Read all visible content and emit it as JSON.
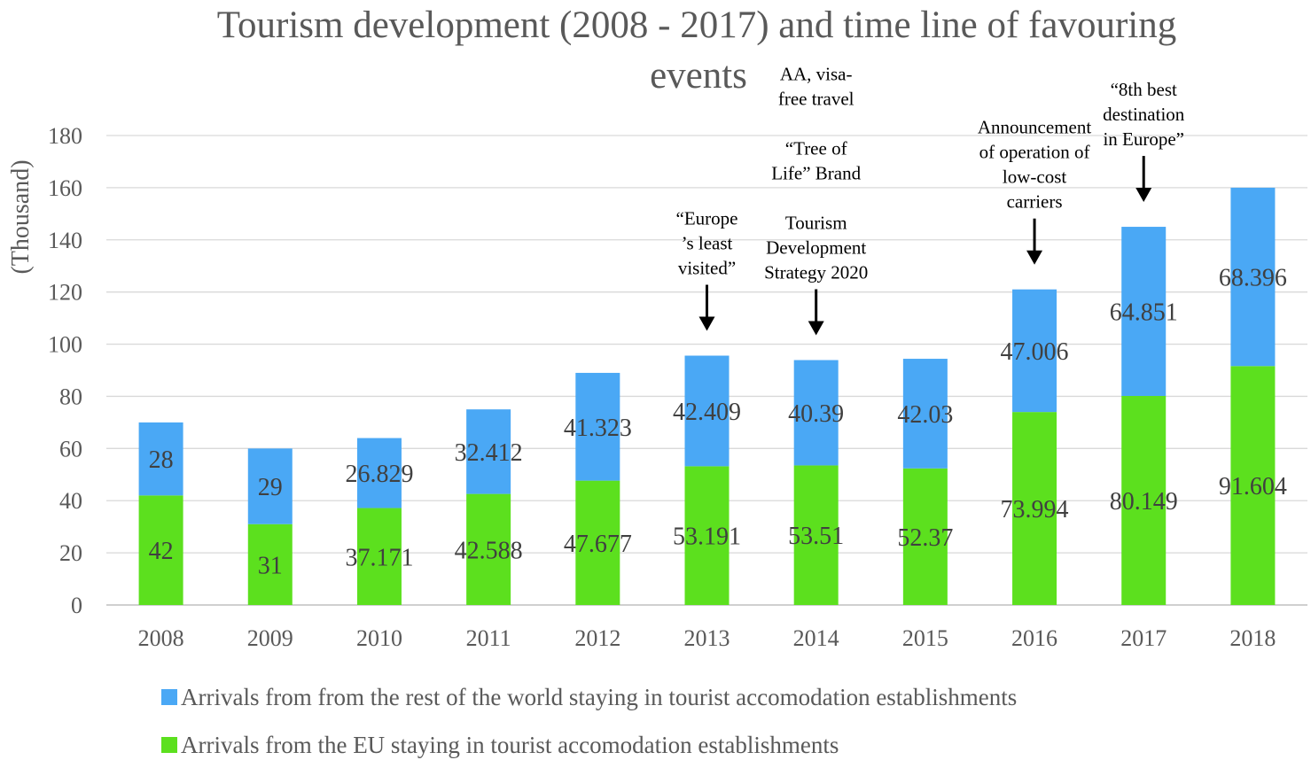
{
  "chart_data": {
    "type": "bar",
    "stacked": true,
    "title_lines": [
      "Tourism development (2008 - 2017) and time line of favouring",
      "events"
    ],
    "ylabel": "(Thousand)",
    "xlabel": "",
    "ylim": [
      0,
      180
    ],
    "yticks": [
      "0",
      "20",
      "40",
      "60",
      "80",
      "100",
      "120",
      "140",
      "160",
      "180"
    ],
    "categories": [
      "2008",
      "2009",
      "2010",
      "2011",
      "2012",
      "2013",
      "2014",
      "2015",
      "2016",
      "2017",
      "2018"
    ],
    "series": [
      {
        "name": "Arrivals from the EU staying in tourist accomodation establishments",
        "color": "#5ce01e",
        "values": [
          42,
          31,
          37.171,
          42.588,
          47.677,
          53.191,
          53.51,
          52.37,
          73.994,
          80.149,
          91.604
        ],
        "labels": [
          "42",
          "31",
          "37.171",
          "42.588",
          "47.677",
          "53.191",
          "53.51",
          "52.37",
          "73.994",
          "80.149",
          "91.604"
        ]
      },
      {
        "name": "Arrivals from from the rest of the world staying in tourist accomodation establishments",
        "color": "#4aa8f5",
        "values": [
          28,
          29,
          26.829,
          32.412,
          41.323,
          42.409,
          40.39,
          42.03,
          47.006,
          64.851,
          68.396
        ],
        "labels": [
          "28",
          "29",
          "26.829",
          "32.412",
          "41.323",
          "42.409",
          "40.39",
          "42.03",
          "47.006",
          "64.851",
          "68.396"
        ]
      }
    ],
    "legend": {
      "placement": "bottom",
      "entries": [
        "Arrivals from from the rest of the world staying in tourist accomodation establishments",
        "Arrivals from the EU staying in tourist accomodation establishments"
      ]
    },
    "annotations": [
      {
        "category": "2013",
        "lines": [
          "“Europe",
          "’s least",
          "visited”"
        ]
      },
      {
        "category": "2014",
        "lines": [
          "AA, visa-",
          "free travel",
          "",
          "“Tree of",
          "Life” Brand",
          "",
          "Tourism",
          "Development",
          "Strategy 2020"
        ]
      },
      {
        "category": "2016",
        "lines": [
          "Announcement",
          "of operation of",
          "low-cost",
          "carriers"
        ]
      },
      {
        "category": "2017",
        "lines": [
          "“8th best",
          "destination",
          "in Europe”"
        ]
      }
    ]
  }
}
